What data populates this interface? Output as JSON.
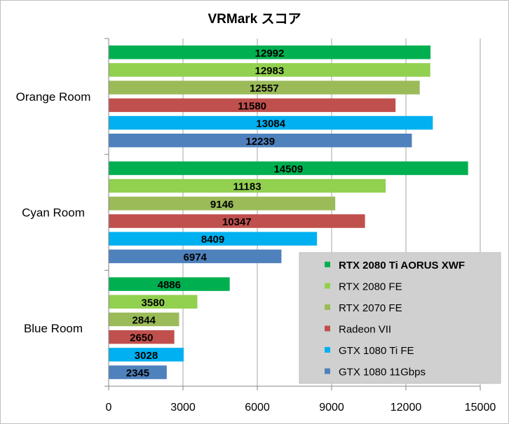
{
  "chart_data": {
    "type": "bar",
    "orientation": "horizontal",
    "title": "VRMark スコア",
    "categories": [
      "Orange Room",
      "Cyan Room",
      "Blue Room"
    ],
    "series": [
      {
        "name": "RTX 2080 Ti AORUS XWF",
        "color": "#00b050",
        "values": [
          12992,
          14509,
          4886
        ]
      },
      {
        "name": "RTX 2080 FE",
        "color": "#92d050",
        "values": [
          12983,
          11183,
          3580
        ]
      },
      {
        "name": "RTX 2070 FE",
        "color": "#9bbb59",
        "values": [
          12557,
          9146,
          2844
        ]
      },
      {
        "name": "Radeon VII",
        "color": "#c0504d",
        "values": [
          11580,
          10347,
          2650
        ]
      },
      {
        "name": "GTX 1080 Ti FE",
        "color": "#00b0f0",
        "values": [
          13084,
          8409,
          3028
        ]
      },
      {
        "name": "GTX 1080 11Gbps",
        "color": "#4f81bd",
        "values": [
          12239,
          6974,
          2345
        ]
      }
    ],
    "xticks": [
      "0",
      "3000",
      "6000",
      "9000",
      "12000",
      "15000"
    ],
    "xlim": [
      0,
      15000
    ],
    "xlabel": "",
    "ylabel": "",
    "grid": true,
    "legend": "bottom-right"
  }
}
